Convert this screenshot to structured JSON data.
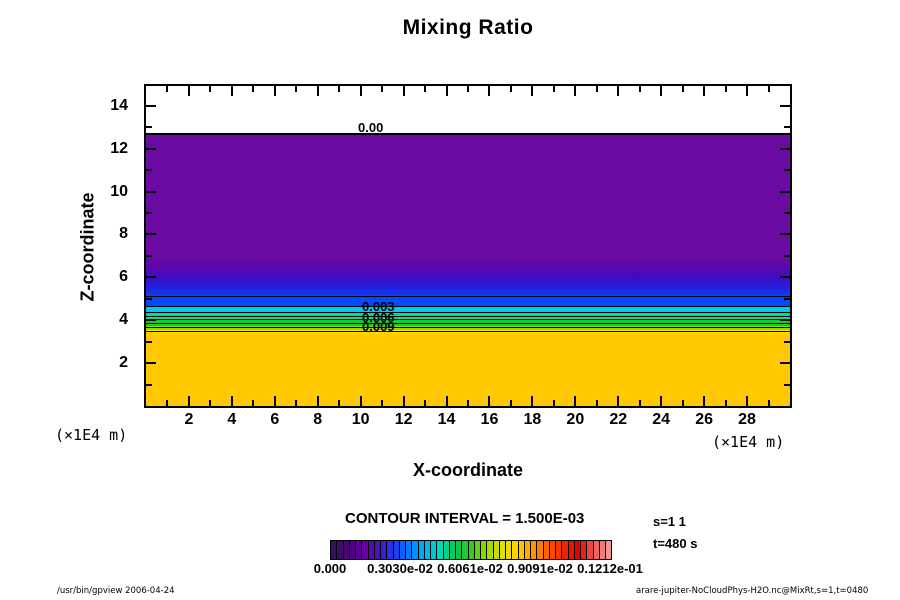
{
  "title": "Mixing Ratio",
  "axes": {
    "x_label": "X-coordinate",
    "y_label": "Z-coordinate",
    "x_unit_left": "(×1E4 m)",
    "x_unit_right": "(×1E4 m)",
    "x_ticks": [
      2,
      4,
      6,
      8,
      10,
      12,
      14,
      16,
      18,
      20,
      22,
      24,
      26,
      28
    ],
    "y_ticks": [
      2,
      4,
      6,
      8,
      10,
      12,
      14
    ]
  },
  "contour_labels": {
    "c0": "0.00",
    "c3": "0.003",
    "c6": "0.006",
    "c9": "0.009"
  },
  "legend": {
    "contour_interval": "CONTOUR INTERVAL = 1.500E-03",
    "s_label": "s=1 1",
    "t_label": "t=480 s",
    "colorbar_ticks": [
      "0.000",
      "0.3030e-02",
      "0.6061e-02",
      "0.9091e-02",
      "0.1212e-01"
    ],
    "colorbar_stops": [
      "#32145a",
      "#50007d",
      "#6400a0",
      "#4614c8",
      "#1e3cf0",
      "#0082ff",
      "#00b4f0",
      "#00d7b4",
      "#00c850",
      "#3cc81e",
      "#96d800",
      "#dce100",
      "#ffd200",
      "#ff9b00",
      "#ff5a00",
      "#f02800",
      "#e10000",
      "#f05a5a",
      "#f0968c"
    ]
  },
  "footer": {
    "left": "/usr/bin/gpview 2006-04-24",
    "right": "arare-jupiter-NoCloudPhys-H2O.nc@MixRt,s=1,t=0480"
  },
  "chart_data": {
    "type": "heatmap",
    "subtype": "filled-contour",
    "title": "Mixing Ratio",
    "xlabel": "X-coordinate",
    "ylabel": "Z-coordinate",
    "axis_unit": "×1E4 m",
    "xlim": [
      0,
      30
    ],
    "ylim": [
      0,
      14.9
    ],
    "x_ticks": [
      2,
      4,
      6,
      8,
      10,
      12,
      14,
      16,
      18,
      20,
      22,
      24,
      26,
      28
    ],
    "y_ticks": [
      2,
      4,
      6,
      8,
      10,
      12,
      14
    ],
    "contour_interval": 0.0015,
    "labeled_contour_levels": [
      0.0,
      0.003,
      0.006,
      0.009
    ],
    "colorbar_range": [
      0.0,
      0.01212
    ],
    "colorbar_tick_values": [
      0.0,
      0.00303,
      0.006061,
      0.009091,
      0.01212
    ],
    "slice_label": "s=1 1",
    "time_label": "t=480 s",
    "field_description": "Horizontally uniform mixing-ratio layers; value increases downward",
    "profile_bands": [
      {
        "z_from": 12.7,
        "z_to": 14.9,
        "value": 0.0,
        "color": "#ffffff"
      },
      {
        "z_from": 6.7,
        "z_to": 12.7,
        "value": 0.0008,
        "color": "#6a0aa2"
      },
      {
        "z_from": 5.1,
        "z_to": 6.7,
        "value": 0.0015,
        "color": "gradient #5a08ae→#0f3af4"
      },
      {
        "z_from": 4.6,
        "z_to": 5.1,
        "value": 0.003,
        "color": "#0549ff"
      },
      {
        "z_from": 4.3,
        "z_to": 4.6,
        "value": 0.0045,
        "color": "#00c8f0"
      },
      {
        "z_from": 4.0,
        "z_to": 4.3,
        "value": 0.006,
        "color": "#00dca0"
      },
      {
        "z_from": 3.7,
        "z_to": 4.0,
        "value": 0.0075,
        "color": "#16cc28"
      },
      {
        "z_from": 3.5,
        "z_to": 3.7,
        "value": 0.009,
        "color": "#8cdc00"
      },
      {
        "z_from": 0.0,
        "z_to": 3.5,
        "value": 0.0105,
        "color": "#ffc800"
      }
    ]
  }
}
